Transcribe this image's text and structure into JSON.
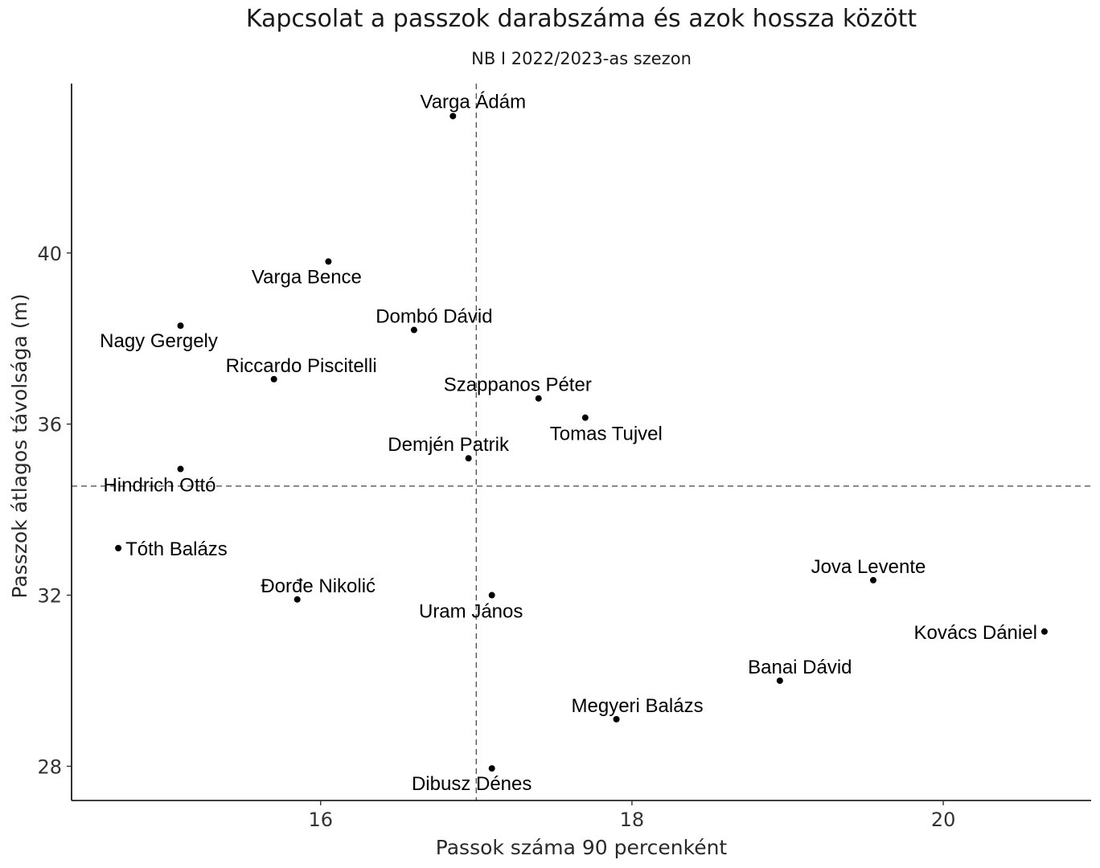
{
  "chart_data": {
    "type": "scatter",
    "title": "Kapcsolat a passzok darabszáma és azok hossza között",
    "subtitle": "NB I 2022/2023-as szezon",
    "xlabel": "Passok száma 90 percenként",
    "ylabel": "Passzok átlagos távolsága (m)",
    "xlim": [
      14.4,
      20.95
    ],
    "ylim": [
      27.2,
      43.96
    ],
    "xticks": [
      16,
      18,
      20
    ],
    "yticks": [
      28,
      32,
      36,
      40
    ],
    "grid": false,
    "ref_lines": {
      "x": 17.0,
      "y": 34.55
    },
    "point_color": "#000000",
    "points": [
      {
        "name": "Varga Ádám",
        "x": 16.85,
        "y": 43.2
      },
      {
        "name": "Varga Bence",
        "x": 16.05,
        "y": 39.8
      },
      {
        "name": "Nagy Gergely",
        "x": 15.1,
        "y": 38.3
      },
      {
        "name": "Dombó Dávid",
        "x": 16.6,
        "y": 38.2
      },
      {
        "name": "Riccardo Piscitelli",
        "x": 15.7,
        "y": 37.05
      },
      {
        "name": "Szappanos Péter",
        "x": 17.4,
        "y": 36.6
      },
      {
        "name": "Tomas Tujvel",
        "x": 17.7,
        "y": 36.15
      },
      {
        "name": "Demjén Patrik",
        "x": 16.95,
        "y": 35.2
      },
      {
        "name": "Hindrich Ottó",
        "x": 15.1,
        "y": 34.95
      },
      {
        "name": "Tóth Balázs",
        "x": 14.7,
        "y": 33.1
      },
      {
        "name": "Đorđe Nikolić",
        "x": 15.85,
        "y": 31.9
      },
      {
        "name": "Uram János",
        "x": 17.1,
        "y": 32.0
      },
      {
        "name": "Jova Levente",
        "x": 19.55,
        "y": 32.35
      },
      {
        "name": "Kovács Dániel",
        "x": 20.65,
        "y": 31.15
      },
      {
        "name": "Banai Dávid",
        "x": 18.95,
        "y": 30.0
      },
      {
        "name": "Megyeri Balázs",
        "x": 17.9,
        "y": 29.1
      },
      {
        "name": "Dibusz Dénes",
        "x": 17.1,
        "y": 27.95
      }
    ]
  }
}
